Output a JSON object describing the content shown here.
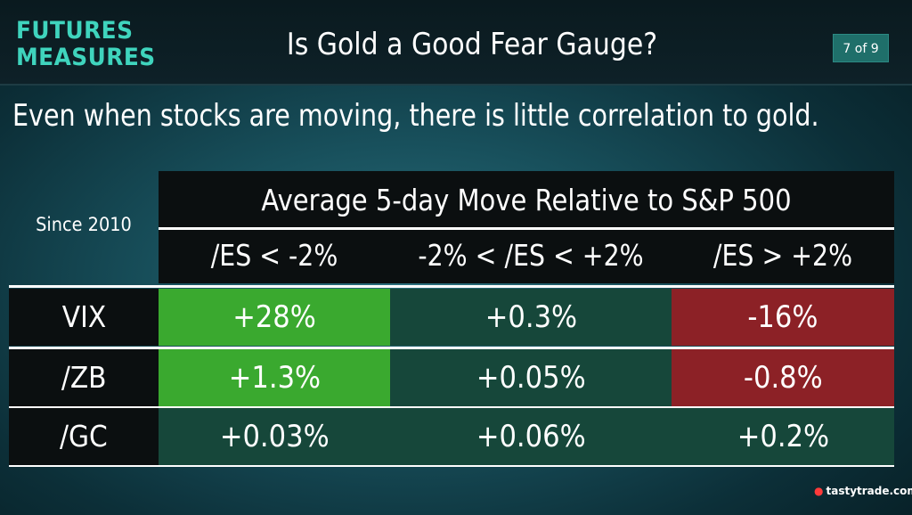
{
  "header": {
    "logo_line1": "FUTURES",
    "logo_line2": "MEASURES",
    "title": "Is Gold a Good Fear Gauge?",
    "page_indicator": "7 of 9"
  },
  "subtitle": "Even when stocks are moving, there is little correlation to gold.",
  "table": {
    "corner_label": "Since 2010",
    "title": "Average 5-day Move Relative to S&P 500",
    "columns": [
      "/ES < -2%",
      "-2% < /ES < +2%",
      "/ES > +2%"
    ],
    "rows": [
      {
        "label": "VIX",
        "values": [
          "+28%",
          "+0.3%",
          "-16%"
        ]
      },
      {
        "label": "/ZB",
        "values": [
          "+1.3%",
          "+0.05%",
          "-0.8%"
        ]
      },
      {
        "label": "/GC",
        "values": [
          "+0.03%",
          "+0.06%",
          "+0.2%"
        ]
      }
    ],
    "colors": {
      "strong_positive": "#3aa92f",
      "neutral": "#16473a",
      "negative": "#8c2126"
    }
  },
  "brand": {
    "icon": "cherry-icon",
    "text": "tastytrade.com"
  }
}
